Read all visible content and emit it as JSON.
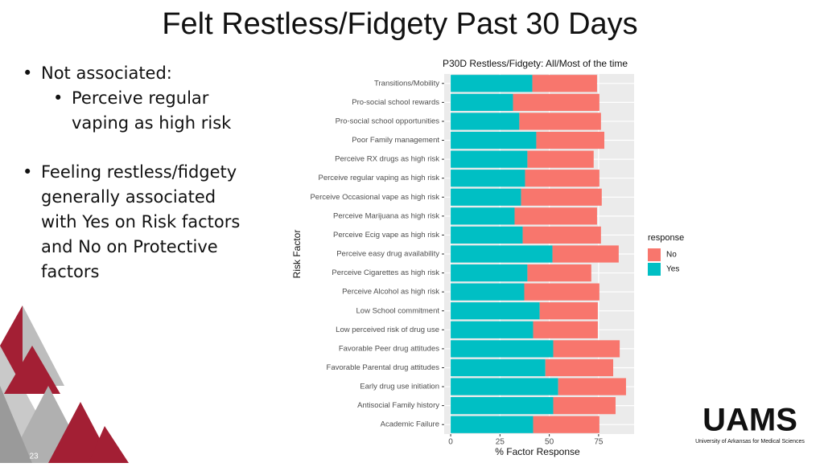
{
  "slide": {
    "title": "Felt Restless/Fidgety Past 30 Days",
    "bullets": [
      {
        "lines": [
          "Not associated:"
        ],
        "sub": [
          {
            "lines": [
              "Perceive regular",
              "vaping as high risk"
            ]
          }
        ]
      },
      {
        "lines": [
          "Feeling restless/fidgety",
          "generally associated",
          "with Yes on Risk factors",
          "and No on Protective",
          "factors"
        ]
      }
    ],
    "logo": "UAMS",
    "logo_caption": "University of Arkansas for Medical Sciences",
    "page_number": "23"
  },
  "chart_data": {
    "type": "stacked_barh",
    "title": "P30D Restless/Fidgety: All/Most of the time",
    "xlabel": "% Factor Response",
    "ylabel": "Risk Factor",
    "categories": [
      "Transitions/Mobility",
      "Pro-social school rewards",
      "Pro-social school opportunities",
      "Poor Family management",
      "Perceive RX drugs as high risk",
      "Perceive regular vaping as high risk",
      "Perceive Occasional vape as high risk",
      "Perceive Marijuana as high risk",
      "Perceive Ecig vape as high risk",
      "Perceive easy drug availability",
      "Perceive Cigarettes as high risk",
      "Perceive Alcohol as high risk",
      "Low School commitment",
      "Low perceived risk of drug use",
      "Favorable Peer drug attitudes",
      "Favorable Parental drug attitudes",
      "Early drug use initiation",
      "Antisocial Family history",
      "Academic Failure"
    ],
    "legend_title": "response",
    "series": [
      {
        "name": "No",
        "color": "#f8766d",
        "values": [
          32.8,
          43.8,
          41.4,
          34.5,
          33.6,
          37.7,
          40.9,
          41.8,
          39.7,
          33.6,
          32.4,
          38.1,
          29.5,
          32.8,
          33.7,
          34.4,
          34.4,
          31.6,
          33.6
        ]
      },
      {
        "name": "Yes",
        "color": "#00bfc4",
        "values": [
          41.4,
          31.6,
          34.8,
          43.4,
          38.9,
          37.7,
          35.7,
          32.4,
          36.5,
          51.6,
          38.9,
          37.3,
          45.1,
          41.8,
          52.0,
          48.0,
          54.5,
          52.0,
          41.8
        ]
      }
    ],
    "stack_order": [
      "Yes",
      "No"
    ],
    "xlim": [
      -3.3,
      93
    ],
    "xticks": [
      0,
      25,
      50,
      75
    ],
    "grid": true,
    "legend": "right"
  }
}
